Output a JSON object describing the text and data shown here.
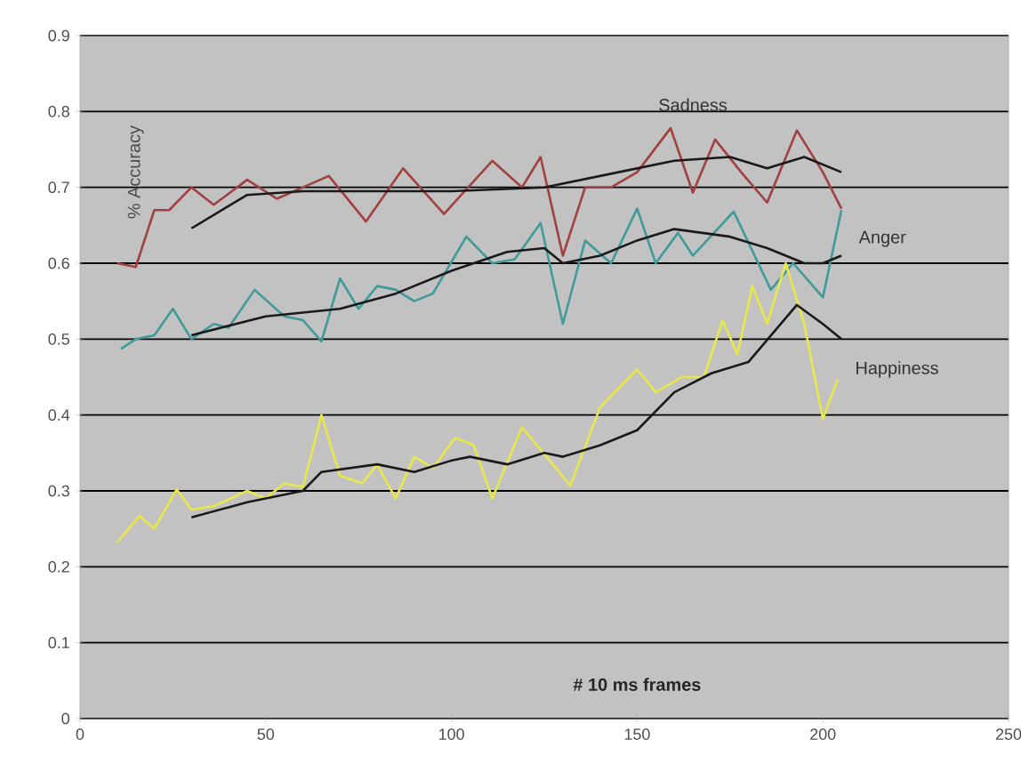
{
  "chart_data": {
    "type": "line",
    "xlabel": "# 10 ms frames",
    "ylabel": "% Accuracy",
    "xlim": [
      0,
      250
    ],
    "ylim": [
      0,
      0.9
    ],
    "xticks": [
      0,
      50,
      100,
      150,
      200,
      250
    ],
    "yticks": [
      0,
      0.1,
      0.2,
      0.3,
      0.4,
      0.5,
      0.6,
      0.7,
      0.8,
      0.9
    ],
    "grid": "y",
    "legend": false,
    "marker": "none",
    "line_style": "solid",
    "series": [
      {
        "name": "Sadness",
        "color": "#a0413f",
        "x": [
          10,
          15,
          20,
          24,
          30,
          36,
          45,
          53,
          60,
          67,
          77,
          87,
          98,
          111,
          119,
          124,
          130,
          136,
          143,
          150,
          159,
          165,
          171,
          178,
          185,
          193,
          200,
          205
        ],
        "values": [
          0.6,
          0.595,
          0.67,
          0.67,
          0.7,
          0.677,
          0.71,
          0.685,
          0.7,
          0.715,
          0.655,
          0.725,
          0.665,
          0.735,
          0.7,
          0.74,
          0.61,
          0.7,
          0.7,
          0.72,
          0.778,
          0.693,
          0.763,
          0.72,
          0.68,
          0.775,
          0.72,
          0.672
        ]
      },
      {
        "name": "Anger",
        "color": "#3f9a9a",
        "x": [
          11,
          15,
          20,
          25,
          30,
          36,
          40,
          47,
          55,
          60,
          65,
          70,
          75,
          80,
          85,
          90,
          95,
          104,
          111,
          117,
          124,
          130,
          136,
          143,
          150,
          155,
          161,
          165,
          176,
          186,
          192,
          200,
          205
        ],
        "values": [
          0.487,
          0.5,
          0.505,
          0.54,
          0.5,
          0.52,
          0.515,
          0.565,
          0.53,
          0.525,
          0.497,
          0.58,
          0.54,
          0.57,
          0.565,
          0.55,
          0.56,
          0.635,
          0.6,
          0.605,
          0.653,
          0.52,
          0.63,
          0.6,
          0.672,
          0.6,
          0.64,
          0.61,
          0.668,
          0.565,
          0.6,
          0.555,
          0.67
        ]
      },
      {
        "name": "Happiness",
        "color": "#e8e84a",
        "x": [
          10,
          16,
          20,
          26,
          30,
          36,
          45,
          50,
          55,
          60,
          65,
          70,
          76,
          80,
          85,
          90,
          95,
          101,
          106,
          111,
          119,
          132,
          140,
          150,
          155,
          162,
          168,
          173,
          177,
          181,
          185,
          190,
          195,
          200,
          204
        ],
        "values": [
          0.232,
          0.267,
          0.25,
          0.302,
          0.275,
          0.28,
          0.3,
          0.29,
          0.31,
          0.305,
          0.4,
          0.32,
          0.31,
          0.335,
          0.29,
          0.345,
          0.33,
          0.37,
          0.36,
          0.29,
          0.384,
          0.307,
          0.41,
          0.46,
          0.43,
          0.45,
          0.45,
          0.525,
          0.48,
          0.57,
          0.52,
          0.6,
          0.52,
          0.395,
          0.447
        ]
      },
      {
        "color": "#1a1a1a",
        "x": [
          30,
          45,
          60,
          80,
          100,
          125,
          145,
          160,
          175,
          185,
          195,
          205
        ],
        "values": [
          0.646,
          0.69,
          0.695,
          0.695,
          0.695,
          0.7,
          0.72,
          0.735,
          0.74,
          0.725,
          0.74,
          0.72
        ]
      },
      {
        "color": "#1a1a1a",
        "x": [
          30,
          50,
          70,
          85,
          100,
          115,
          125,
          130,
          140,
          150,
          160,
          175,
          185,
          195,
          200,
          205
        ],
        "values": [
          0.505,
          0.53,
          0.54,
          0.56,
          0.59,
          0.615,
          0.62,
          0.6,
          0.61,
          0.63,
          0.645,
          0.635,
          0.62,
          0.6,
          0.6,
          0.61
        ]
      },
      {
        "color": "#1a1a1a",
        "x": [
          30,
          45,
          50,
          60,
          65,
          80,
          90,
          100,
          105,
          115,
          125,
          130,
          140,
          150,
          160,
          170,
          180,
          193,
          200,
          205
        ],
        "values": [
          0.265,
          0.285,
          0.29,
          0.3,
          0.325,
          0.335,
          0.325,
          0.34,
          0.345,
          0.335,
          0.35,
          0.345,
          0.36,
          0.38,
          0.43,
          0.455,
          0.47,
          0.545,
          0.52,
          0.5
        ]
      }
    ]
  }
}
